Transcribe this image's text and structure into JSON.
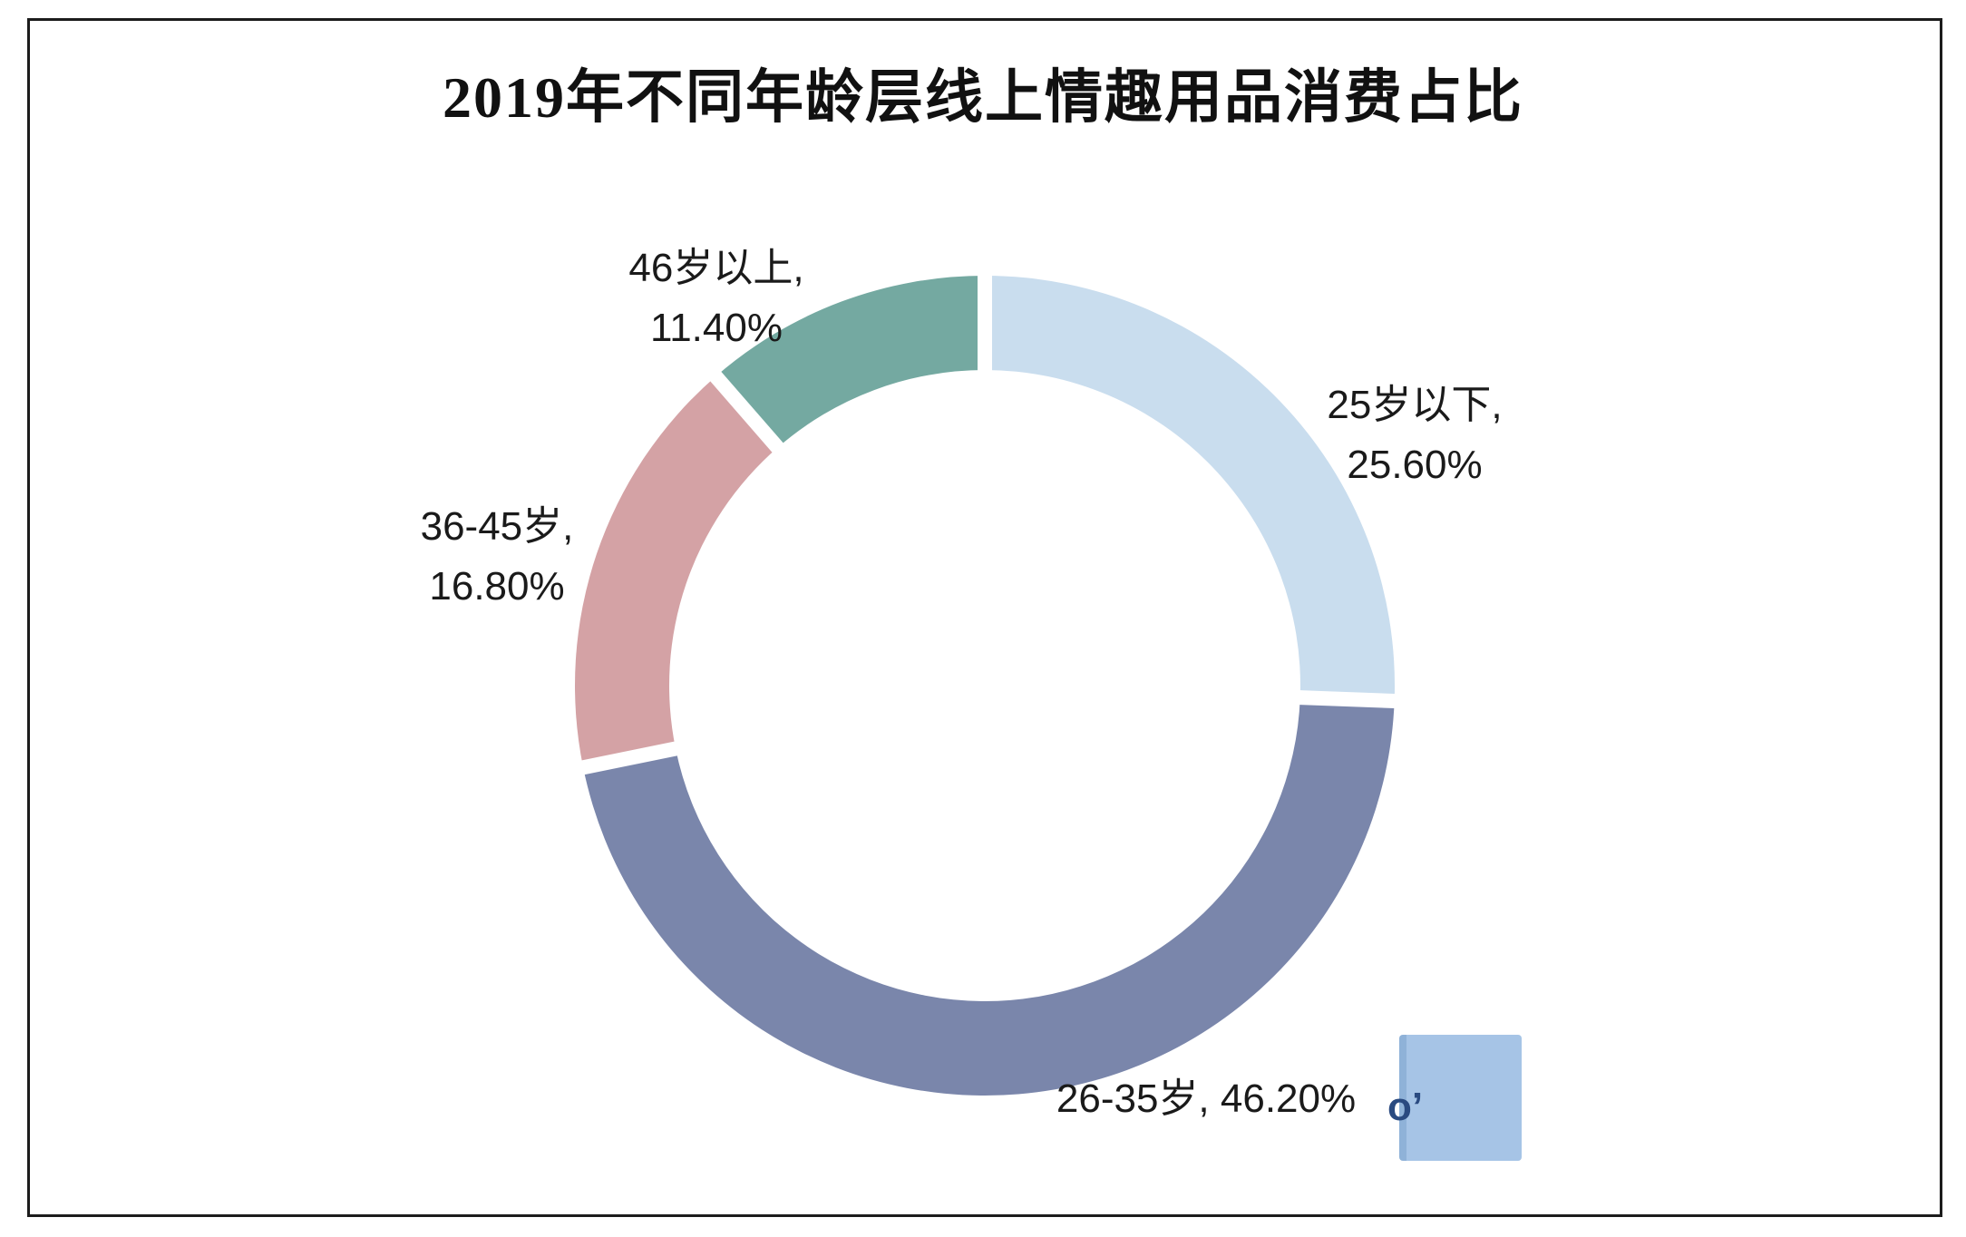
{
  "title": "2019年不同年龄层线上情趣用品消费占比",
  "chart_data": {
    "type": "pie",
    "subtype": "donut",
    "title": "2019年不同年龄层线上情趣用品消费占比",
    "direction": "clockwise",
    "start_angle_deg": 0,
    "inner_radius_ratio": 0.77,
    "legend": "none",
    "label_format": "category, percent",
    "slices": [
      {
        "id": "under-25",
        "label": "25岁以下",
        "value": 25.6,
        "percent_text": "25.60%",
        "label_line1": "25岁以下,",
        "label_line2": "25.60%",
        "color": "#c9ddee"
      },
      {
        "id": "26-35",
        "label": "26-35岁",
        "value": 46.2,
        "percent_text": "46.20%",
        "label_inline": "26-35岁, 46.20%",
        "color": "#7a86ab"
      },
      {
        "id": "36-45",
        "label": "36-45岁",
        "value": 16.8,
        "percent_text": "16.80%",
        "label_line1": "36-45岁,",
        "label_line2": "16.80%",
        "color": "#d4a2a5"
      },
      {
        "id": "over-46",
        "label": "46岁以上",
        "value": 11.4,
        "percent_text": "11.40%",
        "label_line1": "46岁以上,",
        "label_line2": "11.40%",
        "color": "#74a9a1"
      }
    ]
  },
  "watermark_patch": {
    "color": "#a6c4e6",
    "artifact_text": "o’"
  }
}
